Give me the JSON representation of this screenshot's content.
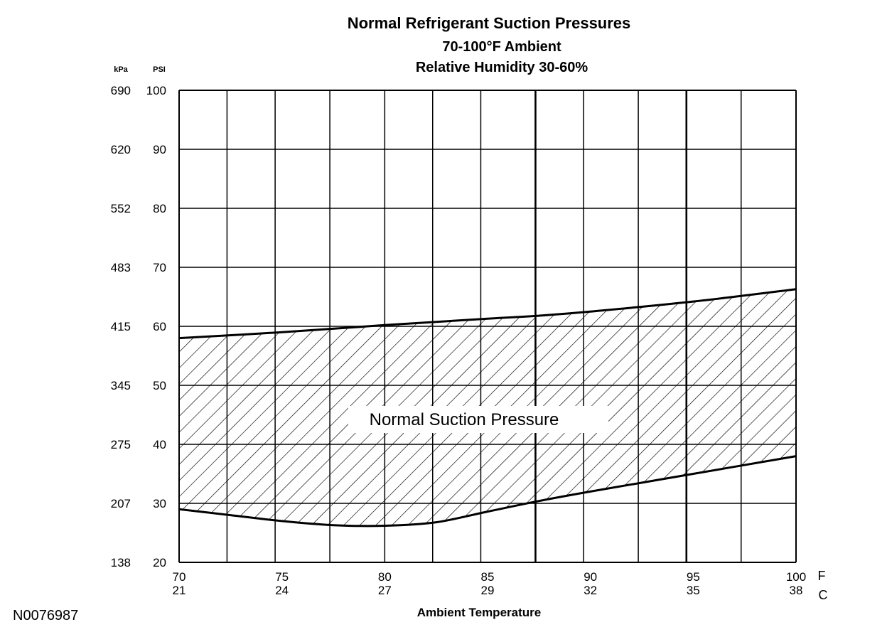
{
  "chart_data": {
    "type": "area",
    "title": "Normal Refrigerant Suction Pressures",
    "subtitles": [
      "70-100°F Ambient",
      "Relative Humidity 30-60%"
    ],
    "xlabel": "Ambient Temperature",
    "x_unit_primary": "F",
    "x_unit_secondary": "C",
    "y_unit_primary": "PSI",
    "y_unit_secondary": "kPa",
    "xlim": [
      70,
      100
    ],
    "ylim": [
      20,
      100
    ],
    "x_ticks": [
      {
        "f": "70",
        "c": "21",
        "value": 70
      },
      {
        "f": "75",
        "c": "24",
        "value": 75
      },
      {
        "f": "80",
        "c": "27",
        "value": 80
      },
      {
        "f": "85",
        "c": "29",
        "value": 85
      },
      {
        "f": "90",
        "c": "32",
        "value": 90
      },
      {
        "f": "95",
        "c": "35",
        "value": 95
      },
      {
        "f": "100",
        "c": "38",
        "value": 100
      }
    ],
    "y_ticks": [
      {
        "psi": "100",
        "kpa": "690",
        "value": 100
      },
      {
        "psi": "90",
        "kpa": "620",
        "value": 90
      },
      {
        "psi": "80",
        "kpa": "552",
        "value": 80
      },
      {
        "psi": "70",
        "kpa": "483",
        "value": 70
      },
      {
        "psi": "60",
        "kpa": "415",
        "value": 60
      },
      {
        "psi": "50",
        "kpa": "345",
        "value": 50
      },
      {
        "psi": "40",
        "kpa": "275",
        "value": 40
      },
      {
        "psi": "30",
        "kpa": "207",
        "value": 30
      },
      {
        "psi": "20",
        "kpa": "138",
        "value": 20
      }
    ],
    "grid_x_values": [
      72.33,
      74.67,
      77.33,
      80,
      82.33,
      84.67,
      87.33,
      89.67,
      92.33,
      94.67,
      97.33
    ],
    "grid_x_bold": [
      87.33,
      94.67
    ],
    "grid": true,
    "region_label": "Normal Suction Pressure",
    "band": {
      "upper": [
        [
          70,
          58
        ],
        [
          75,
          59
        ],
        [
          80,
          60.2
        ],
        [
          85,
          61.3
        ],
        [
          87.5,
          61.8
        ],
        [
          90,
          62.5
        ],
        [
          95,
          64.2
        ],
        [
          100,
          66.3
        ]
      ],
      "lower": [
        [
          70,
          29
        ],
        [
          72.5,
          28
        ],
        [
          75,
          27
        ],
        [
          77.5,
          26.3
        ],
        [
          80,
          26.2
        ],
        [
          82.5,
          26.8
        ],
        [
          85,
          28.6
        ],
        [
          87.5,
          30.4
        ],
        [
          90,
          32
        ],
        [
          95,
          35
        ],
        [
          100,
          38
        ]
      ]
    }
  },
  "figure_id": "N0076987"
}
